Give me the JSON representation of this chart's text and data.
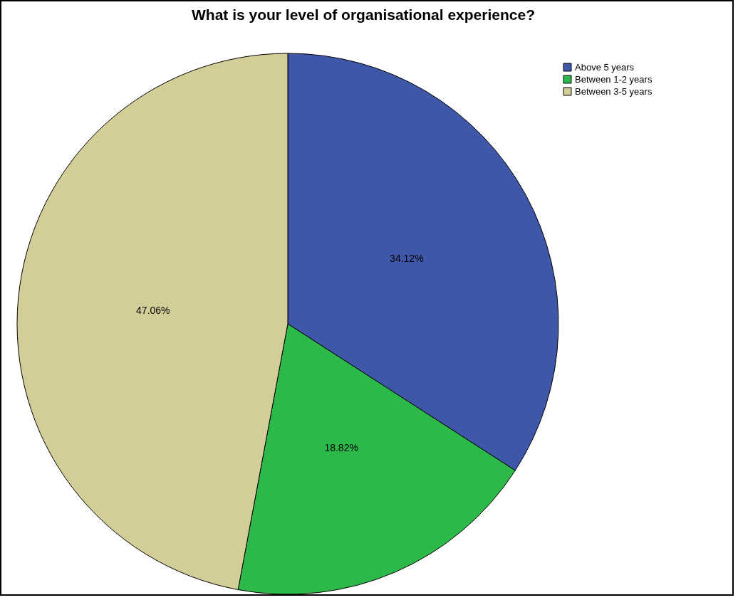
{
  "chart_data": {
    "type": "pie",
    "title": "What is your level of organisational experience?",
    "categories": [
      "Above 5 years",
      "Between 1-2 years",
      "Between 3-5 years"
    ],
    "values": [
      34.12,
      18.82,
      47.06
    ],
    "colors": [
      "#3f57a9",
      "#2db84a",
      "#d3cd98"
    ],
    "value_labels": [
      "34.12%",
      "18.82%",
      "47.06%"
    ],
    "legend": "top right"
  }
}
